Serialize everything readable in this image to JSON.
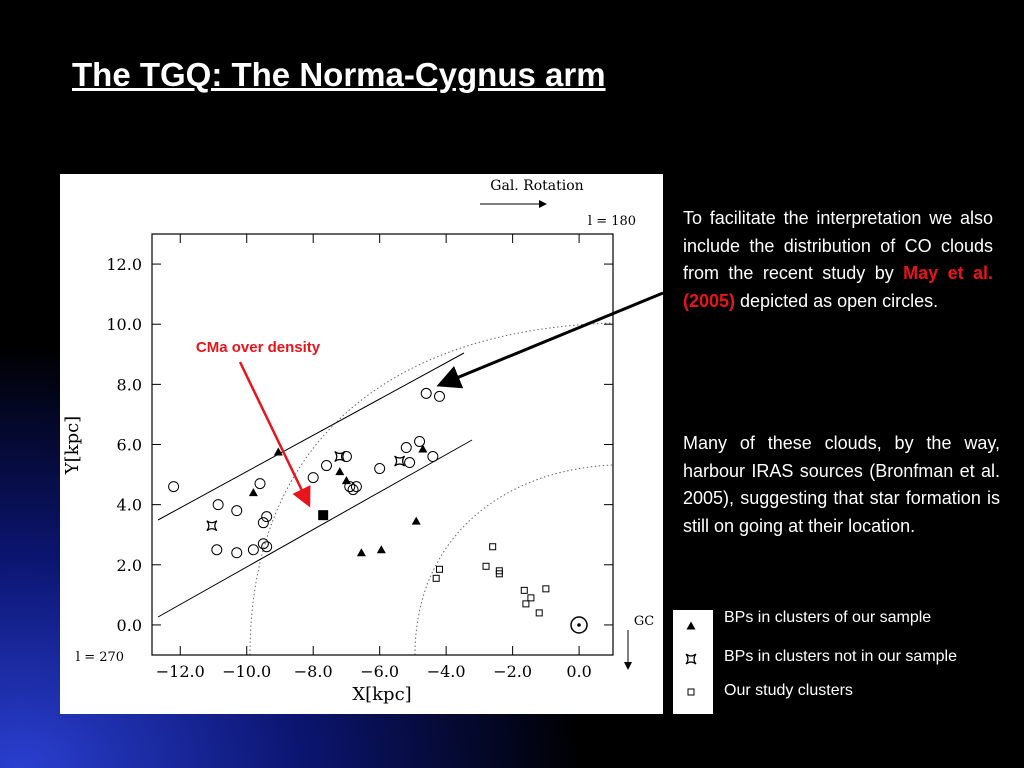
{
  "title": "The TGQ: The Norma-Cygnus arm",
  "paragraphs": [
    [
      "To facilitate the interpretation we also include the distribution of CO clouds from the recent study by ",
      "May et al. (2005)",
      " depicted as open circles."
    ],
    [
      "Many of these clouds, by the way, harbour IRAS sources (Bronfman et al. 2005), suggesting that star formation is still on going at their location."
    ]
  ],
  "chart_data": {
    "type": "scatter",
    "x_label": "X[kpc]",
    "y_label": "Y[kpc]",
    "annotations": [
      "Gal. Rotation",
      "l = 180",
      "l = 270",
      "GC",
      "CMa over density"
    ],
    "xlim": [
      -12.85,
      1.02
    ],
    "ylim": [
      -1,
      13
    ],
    "xticks": [
      {
        "value": -12,
        "label": "−12.0"
      },
      {
        "value": -10,
        "label": "−10.0"
      },
      {
        "value": -8,
        "label": "−8.0"
      },
      {
        "value": -6,
        "label": "−6.0"
      },
      {
        "value": -4,
        "label": "−4.0"
      },
      {
        "value": -2,
        "label": "−2.0"
      },
      {
        "value": 0,
        "label": "0.0"
      }
    ],
    "yticks": [
      {
        "value": 0,
        "label": "0.0"
      },
      {
        "value": 2,
        "label": "2.0"
      },
      {
        "value": 4,
        "label": "4.0"
      },
      {
        "value": 6,
        "label": "6.0"
      },
      {
        "value": 8,
        "label": "8.0"
      },
      {
        "value": 10,
        "label": "10.0"
      },
      {
        "value": 12,
        "label": "12.0"
      }
    ],
    "series": [
      {
        "name": "BPs in clusters of our sample",
        "marker": "triangle",
        "color": "#000000",
        "x": [
          -9.05,
          -9.8,
          -7.2,
          -7.0,
          -4.7,
          -6.55,
          -5.95,
          -4.9
        ],
        "values": [
          5.75,
          4.4,
          5.1,
          4.8,
          5.85,
          2.4,
          2.5,
          3.45
        ]
      },
      {
        "name": "BPs in clusters not in our sample",
        "marker": "star",
        "color": "#000000",
        "x": [
          -11.05,
          -7.2,
          -5.4
        ],
        "values": [
          3.3,
          5.6,
          5.45
        ]
      },
      {
        "name": "Our study clusters",
        "marker": "open-square",
        "color": "#000000",
        "x": [
          -2.6,
          -2.8,
          -2.4,
          -2.4,
          -4.2,
          -4.3,
          -1.65,
          -1.45,
          -1.6,
          -1.0,
          -1.2
        ],
        "values": [
          2.6,
          1.95,
          1.8,
          1.7,
          1.85,
          1.55,
          1.15,
          0.9,
          0.7,
          1.2,
          0.4
        ]
      },
      {
        "marker": "open-circle",
        "color": "#000000",
        "x": [
          -12.2,
          -10.86,
          -10.3,
          -9.6,
          -9.4,
          -9.5,
          -10.9,
          -10.3,
          -9.8,
          -9.5,
          -9.4,
          -8.0,
          -7.6,
          -7.0,
          -6.9,
          -6.7,
          -6.8,
          -6.0,
          -5.2,
          -5.1,
          -4.8,
          -4.4,
          -4.6,
          -4.2
        ],
        "values": [
          4.6,
          4.0,
          3.8,
          4.7,
          3.6,
          3.4,
          2.5,
          2.4,
          2.5,
          2.7,
          2.6,
          4.9,
          5.3,
          5.6,
          4.6,
          4.6,
          4.5,
          5.2,
          5.9,
          5.4,
          6.1,
          5.6,
          7.7,
          7.6
        ]
      },
      {
        "marker": "filled-square",
        "color": "#000000",
        "x": [
          -7.7
        ],
        "values": [
          3.65
        ]
      }
    ]
  }
}
